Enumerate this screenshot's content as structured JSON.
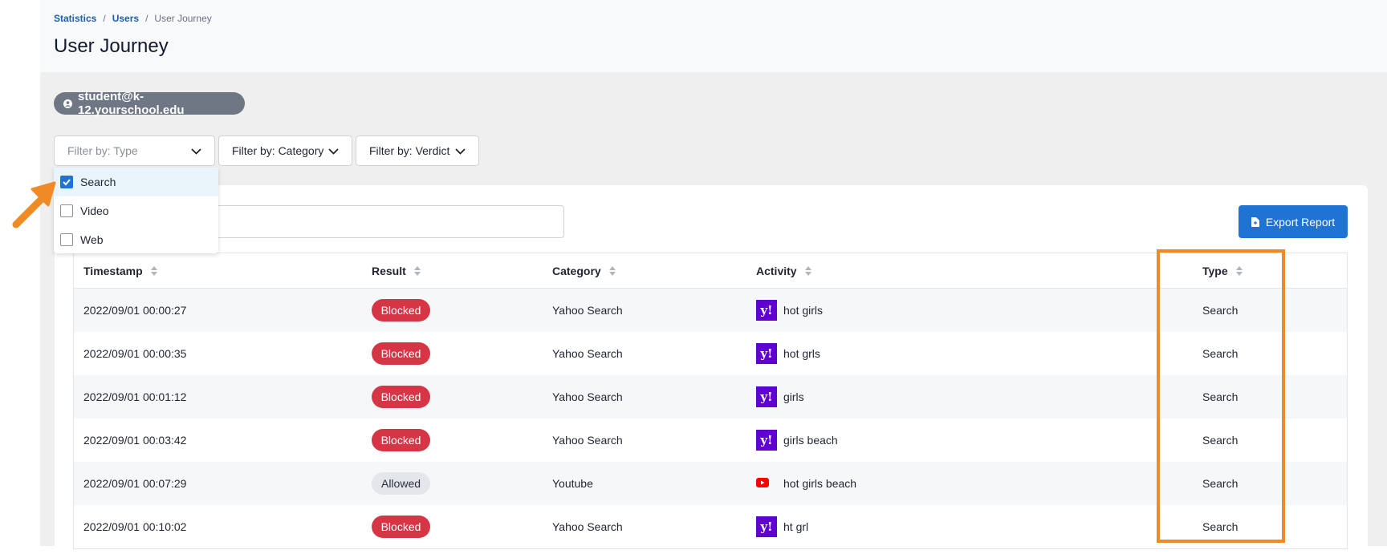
{
  "header": {
    "breadcrumb": [
      "Statistics",
      "Users",
      "User Journey"
    ],
    "title": "User Journey"
  },
  "user": "student@k-12.yourschool.edu",
  "filters": [
    "Filter by: Type",
    "Filter by: Category",
    "Filter by: Verdict"
  ],
  "type_options": [
    "Search",
    "Video",
    "Web"
  ],
  "export_button": "Export Report",
  "table": {
    "columns": [
      "Timestamp",
      "Result",
      "Category",
      "Activity",
      "Type"
    ],
    "rows": [
      [
        "2022/09/01 00:00:27",
        "Blocked",
        "Yahoo Search",
        "hot girls",
        "Search"
      ],
      [
        "2022/09/01 00:00:35",
        "Blocked",
        "Yahoo Search",
        "hot grls",
        "Search"
      ],
      [
        "2022/09/01 00:01:12",
        "Blocked",
        "Yahoo Search",
        "girls",
        "Search"
      ],
      [
        "2022/09/01 00:03:42",
        "Blocked",
        "Yahoo Search",
        "girls beach",
        "Search"
      ],
      [
        "2022/09/01 00:07:29",
        "Allowed",
        "Youtube",
        "hot girls beach",
        "Search"
      ],
      [
        "2022/09/01 00:10:02",
        "Blocked",
        "Yahoo Search",
        "ht grl",
        "Search"
      ]
    ]
  }
}
